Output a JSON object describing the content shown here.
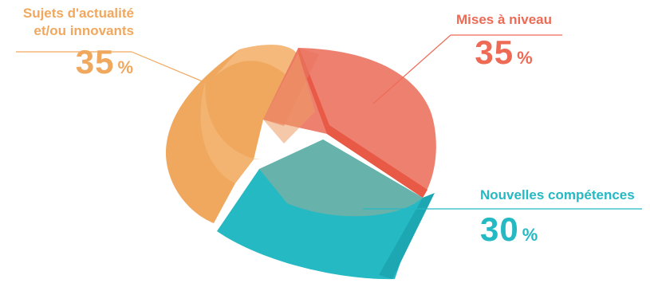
{
  "chart_data": {
    "type": "pie",
    "title": "",
    "slices": [
      {
        "label": "Sujets d'actualité et/ou innovants",
        "value": 35,
        "display": "35",
        "unit": "%",
        "color": "#f0a85e"
      },
      {
        "label": "Mises à niveau",
        "value": 35,
        "display": "35",
        "unit": "%",
        "color": "#ee6a55"
      },
      {
        "label": "Nouvelles compétences",
        "value": 30,
        "display": "30",
        "unit": "%",
        "color": "#25b9c4"
      }
    ],
    "legend": "callouts"
  }
}
